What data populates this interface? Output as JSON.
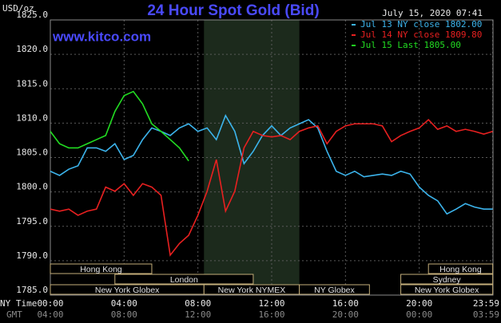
{
  "chart_data": {
    "type": "line",
    "title": "24 Hour Spot Gold (Bid)",
    "source": "www.kitco.com",
    "timestamp": "July 15, 2020 07:41",
    "y_label": "USD/oz",
    "x_row_labels": [
      "NY Time",
      "GMT"
    ],
    "ylim": [
      1785,
      1825
    ],
    "yticks": [
      {
        "value": 1785,
        "label": "1785.0"
      },
      {
        "value": 1790,
        "label": "1790.0"
      },
      {
        "value": 1795,
        "label": "1795.0"
      },
      {
        "value": 1800,
        "label": "1800.0"
      },
      {
        "value": 1805,
        "label": "1805.0"
      },
      {
        "value": 1810,
        "label": "1810.0"
      },
      {
        "value": 1815,
        "label": "1815.0"
      },
      {
        "value": 1820,
        "label": "1820.0"
      },
      {
        "value": 1825,
        "label": "1825.0"
      }
    ],
    "xlim": [
      0,
      24
    ],
    "xticks": [
      {
        "value": 0,
        "label": "00:00"
      },
      {
        "value": 4,
        "label": "04:00"
      },
      {
        "value": 8,
        "label": "08:00"
      },
      {
        "value": 12,
        "label": "12:00"
      },
      {
        "value": 16,
        "label": "16:00"
      },
      {
        "value": 20,
        "label": "20:00"
      },
      {
        "value": 23.983,
        "label": "23:59"
      }
    ],
    "gmt_tick_labels": [
      "04:00",
      "08:00",
      "12:00",
      "16:00",
      "20:00",
      "00:00",
      "03:59"
    ],
    "grid": true,
    "legend_corner": "top-right",
    "shaded_region": [
      8.33,
      13.5
    ],
    "sessions": [
      {
        "name": "Hong Kong",
        "row": 0,
        "start": 0,
        "end": 5.5
      },
      {
        "name": "Hong Kong",
        "row": 0,
        "start": 20.5,
        "end": 23.983
      },
      {
        "name": "London",
        "row": 1,
        "start": 3.5,
        "end": 11
      },
      {
        "name": "Sydney",
        "row": 1,
        "start": 19,
        "end": 23.983
      },
      {
        "name": "New York Globex",
        "row": 2,
        "start": 0,
        "end": 8.33
      },
      {
        "name": "New York NYMEX",
        "row": 2,
        "start": 8.33,
        "end": 13.5
      },
      {
        "name": "NY Globex",
        "row": 2,
        "start": 13.5,
        "end": 17.3
      },
      {
        "name": "New York Globex",
        "row": 2,
        "start": 19,
        "end": 23.983
      }
    ],
    "x": [
      0,
      0.5,
      1,
      1.5,
      2,
      2.5,
      3,
      3.5,
      4,
      4.5,
      5,
      5.5,
      6,
      6.5,
      7,
      7.5,
      8,
      8.5,
      9,
      9.5,
      10,
      10.5,
      11,
      11.5,
      12,
      12.5,
      13,
      13.5,
      14,
      14.5,
      15,
      15.5,
      16,
      16.5,
      17,
      17.5,
      18,
      18.5,
      19,
      19.5,
      20,
      20.5,
      21,
      21.5,
      22,
      22.5,
      23,
      23.5,
      23.983
    ],
    "series": [
      {
        "name": "Jul 13 NY close 1802.00",
        "color": "#3cb4ec",
        "values": [
          1803.0,
          1802.4,
          1803.3,
          1803.8,
          1806.4,
          1806.4,
          1805.9,
          1807.0,
          1804.7,
          1805.3,
          1807.6,
          1809.3,
          1808.8,
          1808.2,
          1809.3,
          1809.9,
          1808.8,
          1809.3,
          1807.6,
          1811.1,
          1808.8,
          1804.1,
          1805.9,
          1808.2,
          1809.6,
          1808.2,
          1809.3,
          1809.9,
          1810.5,
          1809.3,
          1805.9,
          1803.0,
          1802.4,
          1803.0,
          1802.2,
          1802.4,
          1802.6,
          1802.4,
          1803.0,
          1802.6,
          1800.7,
          1799.5,
          1798.7,
          1796.8,
          1797.5,
          1798.3,
          1797.8,
          1797.5,
          1797.5
        ]
      },
      {
        "name": "Jul 14 NY close 1809.80",
        "color": "#e82020",
        "values": [
          1797.5,
          1797.2,
          1797.5,
          1796.6,
          1797.2,
          1797.5,
          1800.7,
          1800.1,
          1801.2,
          1799.5,
          1801.2,
          1800.7,
          1799.5,
          1790.8,
          1792.5,
          1793.7,
          1796.6,
          1800.1,
          1804.7,
          1797.2,
          1800.1,
          1806.4,
          1808.8,
          1808.2,
          1808.0,
          1808.2,
          1807.6,
          1808.8,
          1809.3,
          1809.6,
          1807.0,
          1808.8,
          1809.6,
          1809.9,
          1809.9,
          1809.9,
          1809.6,
          1807.3,
          1808.2,
          1808.8,
          1809.3,
          1810.5,
          1809.1,
          1809.6,
          1808.8,
          1809.1,
          1808.8,
          1808.4,
          1808.8
        ]
      },
      {
        "name": "Jul 15 Last 1805.00",
        "color": "#22dd22",
        "values": [
          1808.8,
          1807.0,
          1806.4,
          1806.4,
          1807.0,
          1807.6,
          1808.2,
          1811.7,
          1814.0,
          1814.6,
          1812.8,
          1809.9,
          1808.8,
          1807.6,
          1806.4,
          1804.5,
          null,
          null,
          null,
          null,
          null,
          null,
          null,
          null,
          null,
          null,
          null,
          null,
          null,
          null,
          null,
          null,
          null,
          null,
          null,
          null,
          null,
          null,
          null,
          null,
          null,
          null,
          null,
          null,
          null,
          null,
          null,
          null,
          null
        ]
      }
    ]
  }
}
